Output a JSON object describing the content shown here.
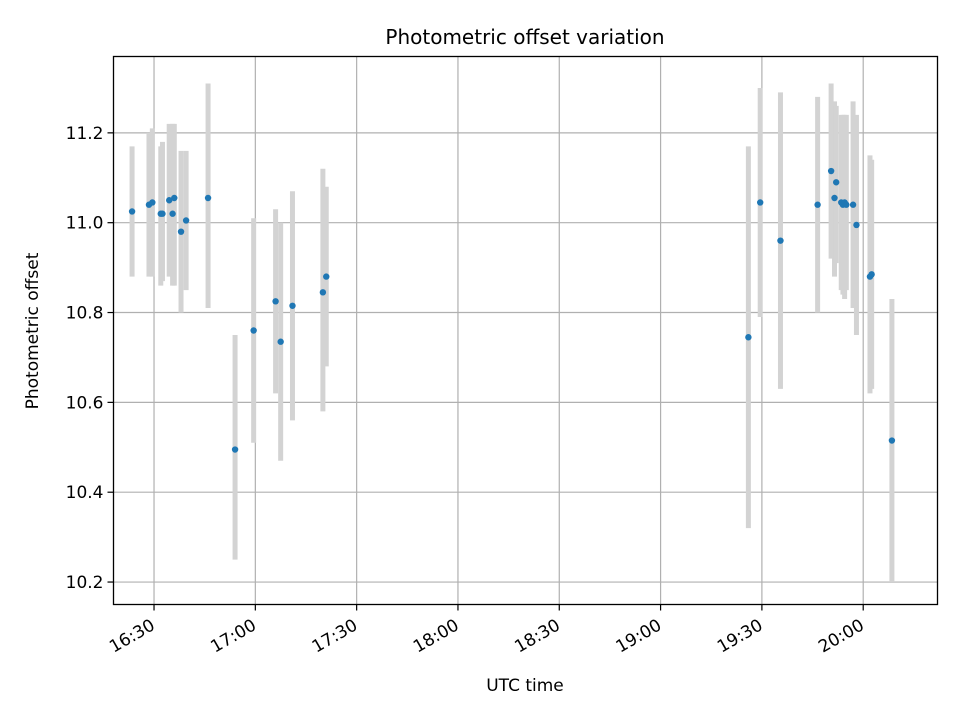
{
  "chart_data": {
    "type": "scatter",
    "title": "Photometric offset variation",
    "xlabel": "UTC time",
    "ylabel": "Photometric offset",
    "grid": true,
    "legend": "none",
    "x_axis_type": "time",
    "xlim": [
      "16:18",
      "20:22"
    ],
    "ylim": [
      10.15,
      11.37
    ],
    "xticks": [
      "16:30",
      "17:00",
      "17:30",
      "18:00",
      "18:30",
      "19:00",
      "19:30",
      "20:00"
    ],
    "yticks": [
      "10.2",
      "10.4",
      "10.6",
      "10.8",
      "11.0",
      "11.2"
    ],
    "colors": {
      "point": "#1f77b4",
      "errorbar": "#d3d3d3",
      "grid": "#b0b0b0"
    },
    "series": [
      {
        "points": [
          {
            "x": "16:23:30",
            "y": 11.025,
            "ylow": 10.88,
            "yhigh": 11.17
          },
          {
            "x": "16:28:30",
            "y": 11.04,
            "ylow": 10.88,
            "yhigh": 11.2
          },
          {
            "x": "16:29:30",
            "y": 11.045,
            "ylow": 10.88,
            "yhigh": 11.21
          },
          {
            "x": "16:32:00",
            "y": 11.02,
            "ylow": 10.86,
            "yhigh": 11.17
          },
          {
            "x": "16:32:30",
            "y": 11.02,
            "ylow": 10.87,
            "yhigh": 11.18
          },
          {
            "x": "16:34:30",
            "y": 11.05,
            "ylow": 10.88,
            "yhigh": 11.22
          },
          {
            "x": "16:35:30",
            "y": 11.02,
            "ylow": 10.86,
            "yhigh": 11.22
          },
          {
            "x": "16:36:00",
            "y": 11.055,
            "ylow": 10.86,
            "yhigh": 11.22
          },
          {
            "x": "16:38:00",
            "y": 10.98,
            "ylow": 10.8,
            "yhigh": 11.16
          },
          {
            "x": "16:39:30",
            "y": 11.005,
            "ylow": 10.85,
            "yhigh": 11.16
          },
          {
            "x": "16:46:00",
            "y": 11.055,
            "ylow": 10.81,
            "yhigh": 11.31
          },
          {
            "x": "16:54:00",
            "y": 10.495,
            "ylow": 10.25,
            "yhigh": 10.75
          },
          {
            "x": "16:59:30",
            "y": 10.76,
            "ylow": 10.51,
            "yhigh": 11.01
          },
          {
            "x": "17:06:00",
            "y": 10.825,
            "ylow": 10.62,
            "yhigh": 11.03
          },
          {
            "x": "17:07:30",
            "y": 10.735,
            "ylow": 10.47,
            "yhigh": 11.0
          },
          {
            "x": "17:11:00",
            "y": 10.815,
            "ylow": 10.56,
            "yhigh": 11.07
          },
          {
            "x": "17:20:00",
            "y": 10.845,
            "ylow": 10.58,
            "yhigh": 11.12
          },
          {
            "x": "17:21:00",
            "y": 10.88,
            "ylow": 10.68,
            "yhigh": 11.08
          },
          {
            "x": "19:26:00",
            "y": 10.745,
            "ylow": 10.32,
            "yhigh": 11.17
          },
          {
            "x": "19:29:30",
            "y": 11.045,
            "ylow": 10.79,
            "yhigh": 11.3
          },
          {
            "x": "19:35:30",
            "y": 10.96,
            "ylow": 10.63,
            "yhigh": 11.29
          },
          {
            "x": "19:46:30",
            "y": 11.04,
            "ylow": 10.8,
            "yhigh": 11.28
          },
          {
            "x": "19:50:30",
            "y": 11.115,
            "ylow": 10.92,
            "yhigh": 11.31
          },
          {
            "x": "19:51:30",
            "y": 11.055,
            "ylow": 10.88,
            "yhigh": 11.27
          },
          {
            "x": "19:52:00",
            "y": 11.09,
            "ylow": 10.91,
            "yhigh": 11.26
          },
          {
            "x": "19:53:30",
            "y": 11.045,
            "ylow": 10.85,
            "yhigh": 11.24
          },
          {
            "x": "19:54:00",
            "y": 11.04,
            "ylow": 10.84,
            "yhigh": 11.24
          },
          {
            "x": "19:54:30",
            "y": 11.045,
            "ylow": 10.83,
            "yhigh": 11.24
          },
          {
            "x": "19:55:00",
            "y": 11.04,
            "ylow": 10.85,
            "yhigh": 11.24
          },
          {
            "x": "19:57:00",
            "y": 11.04,
            "ylow": 10.81,
            "yhigh": 11.27
          },
          {
            "x": "19:58:00",
            "y": 10.995,
            "ylow": 10.75,
            "yhigh": 11.24
          },
          {
            "x": "20:02:00",
            "y": 10.88,
            "ylow": 10.62,
            "yhigh": 11.15
          },
          {
            "x": "20:02:30",
            "y": 10.885,
            "ylow": 10.63,
            "yhigh": 11.14
          },
          {
            "x": "20:08:30",
            "y": 10.515,
            "ylow": 10.2,
            "yhigh": 10.83
          }
        ]
      }
    ]
  }
}
